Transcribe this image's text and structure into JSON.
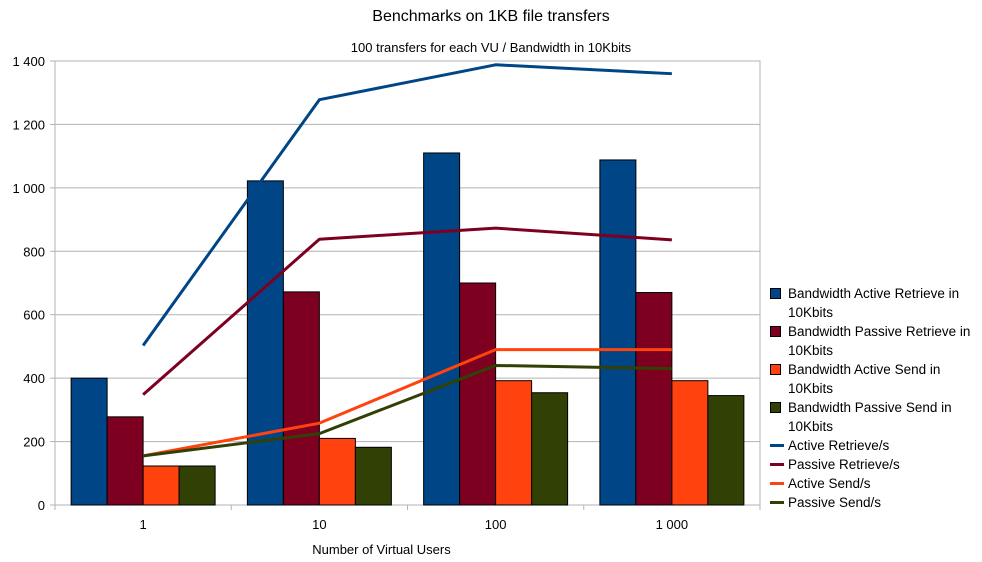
{
  "chart_data": {
    "type": "bar",
    "title": "Benchmarks on 1KB file transfers",
    "subtitle": "100 transfers for each VU / Bandwidth in 10Kbits",
    "xlabel": "Number of Virtual Users",
    "ylabel": "",
    "categories": [
      "1",
      "10",
      "100",
      "1 000"
    ],
    "ylim": [
      0,
      1400
    ],
    "yticks": [
      0,
      200,
      400,
      600,
      800,
      1000,
      1200,
      1400
    ],
    "ytick_labels": [
      "0",
      "200",
      "400",
      "600",
      "800",
      "1 000",
      "1 200",
      "1 400"
    ],
    "grid": true,
    "legend_position": "right",
    "bar_series": [
      {
        "name": "Bandwidth Active Retrieve in 10Kbits",
        "color": "#004586",
        "values": [
          400,
          1022,
          1110,
          1088
        ]
      },
      {
        "name": "Bandwidth Passive Retrieve in 10Kbits",
        "color": "#7e0021",
        "values": [
          278,
          672,
          700,
          670
        ]
      },
      {
        "name": "Bandwidth Active Send in 10Kbits",
        "color": "#ff420e",
        "values": [
          123,
          210,
          392,
          392
        ]
      },
      {
        "name": "Bandwidth Passive Send in 10Kbits",
        "color": "#314004",
        "values": [
          123,
          182,
          354,
          345
        ]
      }
    ],
    "line_series": [
      {
        "name": "Active Retrieve/s",
        "color": "#004586",
        "values": [
          503,
          1278,
          1388,
          1360
        ]
      },
      {
        "name": "Passive Retrieve/s",
        "color": "#7e0021",
        "values": [
          348,
          838,
          873,
          836
        ]
      },
      {
        "name": "Active Send/s",
        "color": "#ff420e",
        "values": [
          155,
          258,
          490,
          490
        ]
      },
      {
        "name": "Passive Send/s",
        "color": "#314004",
        "values": [
          155,
          225,
          440,
          430
        ]
      }
    ]
  }
}
